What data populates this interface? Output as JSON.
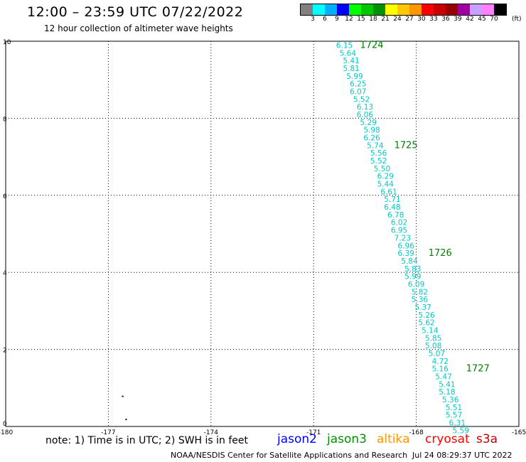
{
  "header": {
    "title": "12:00 – 23:59 UTC 07/22/2022",
    "subtitle": "12 hour collection of altimeter wave heights"
  },
  "legend": {
    "colors": [
      "#808080",
      "#00ffff",
      "#00b0ff",
      "#0000ff",
      "#00ff00",
      "#00c800",
      "#009000",
      "#ffff00",
      "#ffc800",
      "#ff9600",
      "#ff0000",
      "#c80000",
      "#960000",
      "#a000a0",
      "#c8a0ff",
      "#ff80ff",
      "#000000"
    ],
    "labels": [
      "3",
      "6",
      "9",
      "12",
      "15",
      "18",
      "21",
      "24",
      "27",
      "30",
      "33",
      "36",
      "39",
      "42",
      "45",
      "70"
    ],
    "unit": "(ft)"
  },
  "chart_data": {
    "type": "scatter",
    "title": "12:00 – 23:59 UTC 07/22/2022",
    "subtitle": "12 hour collection of altimeter wave heights",
    "xlim": [
      -180,
      -165
    ],
    "ylim": [
      0,
      10
    ],
    "grid": true,
    "x_ticks": [
      "-180",
      "-177",
      "-174",
      "-171",
      "-168",
      "-165"
    ],
    "y_ticks": [
      "0",
      "2",
      "4",
      "6",
      "8",
      "10"
    ],
    "swh_color": "#00c8c8",
    "time_color": "#008000",
    "points": [
      {
        "lon": -170.1,
        "lat": 9.9,
        "swh": "6.15"
      },
      {
        "lon": -170.0,
        "lat": 9.7,
        "swh": "5.64"
      },
      {
        "lon": -169.9,
        "lat": 9.5,
        "swh": "5.41"
      },
      {
        "lon": -169.9,
        "lat": 9.3,
        "swh": "5.81"
      },
      {
        "lon": -169.8,
        "lat": 9.1,
        "swh": "5.99"
      },
      {
        "lon": -169.7,
        "lat": 8.9,
        "swh": "6.25"
      },
      {
        "lon": -169.7,
        "lat": 8.7,
        "swh": "6.07"
      },
      {
        "lon": -169.6,
        "lat": 8.5,
        "swh": "5.52"
      },
      {
        "lon": -169.5,
        "lat": 8.3,
        "swh": "6.13"
      },
      {
        "lon": -169.5,
        "lat": 8.1,
        "swh": "6.06"
      },
      {
        "lon": -169.4,
        "lat": 7.9,
        "swh": "5.29"
      },
      {
        "lon": -169.3,
        "lat": 7.7,
        "swh": "5.98"
      },
      {
        "lon": -169.3,
        "lat": 7.5,
        "swh": "6.26"
      },
      {
        "lon": -169.2,
        "lat": 7.3,
        "swh": "5.74"
      },
      {
        "lon": -169.1,
        "lat": 7.1,
        "swh": "5.56"
      },
      {
        "lon": -169.1,
        "lat": 6.9,
        "swh": "5.52"
      },
      {
        "lon": -169.0,
        "lat": 6.7,
        "swh": "5.50"
      },
      {
        "lon": -168.9,
        "lat": 6.5,
        "swh": "6.29"
      },
      {
        "lon": -168.9,
        "lat": 6.3,
        "swh": "5.44"
      },
      {
        "lon": -168.8,
        "lat": 6.1,
        "swh": "6.61"
      },
      {
        "lon": -168.7,
        "lat": 5.9,
        "swh": "5.71"
      },
      {
        "lon": -168.7,
        "lat": 5.7,
        "swh": "6.48"
      },
      {
        "lon": -168.6,
        "lat": 5.5,
        "swh": "6.78"
      },
      {
        "lon": -168.5,
        "lat": 5.3,
        "swh": "6.02"
      },
      {
        "lon": -168.5,
        "lat": 5.1,
        "swh": "6.95"
      },
      {
        "lon": -168.4,
        "lat": 4.9,
        "swh": "7.23"
      },
      {
        "lon": -168.3,
        "lat": 4.7,
        "swh": "6.96"
      },
      {
        "lon": -168.3,
        "lat": 4.5,
        "swh": "6.39"
      },
      {
        "lon": -168.2,
        "lat": 4.3,
        "swh": "5.84"
      },
      {
        "lon": -168.1,
        "lat": 4.1,
        "swh": "5.83"
      },
      {
        "lon": -168.1,
        "lat": 3.9,
        "swh": "5.99"
      },
      {
        "lon": -168.0,
        "lat": 3.7,
        "swh": "6.09"
      },
      {
        "lon": -167.9,
        "lat": 3.5,
        "swh": "5.82"
      },
      {
        "lon": -167.9,
        "lat": 3.3,
        "swh": "5.36"
      },
      {
        "lon": -167.8,
        "lat": 3.1,
        "swh": "5.37"
      },
      {
        "lon": -167.7,
        "lat": 2.9,
        "swh": "5.26"
      },
      {
        "lon": -167.7,
        "lat": 2.7,
        "swh": "5.62"
      },
      {
        "lon": -167.6,
        "lat": 2.5,
        "swh": "5.14"
      },
      {
        "lon": -167.5,
        "lat": 2.3,
        "swh": "5.85"
      },
      {
        "lon": -167.5,
        "lat": 2.1,
        "swh": "5.08"
      },
      {
        "lon": -167.4,
        "lat": 1.9,
        "swh": "5.07"
      },
      {
        "lon": -167.3,
        "lat": 1.7,
        "swh": "4.72"
      },
      {
        "lon": -167.3,
        "lat": 1.5,
        "swh": "5.16"
      },
      {
        "lon": -167.2,
        "lat": 1.3,
        "swh": "5.47"
      },
      {
        "lon": -167.1,
        "lat": 1.1,
        "swh": "5.41"
      },
      {
        "lon": -167.1,
        "lat": 0.9,
        "swh": "5.18"
      },
      {
        "lon": -167.0,
        "lat": 0.7,
        "swh": "5.36"
      },
      {
        "lon": -166.9,
        "lat": 0.5,
        "swh": "5.51"
      },
      {
        "lon": -166.9,
        "lat": 0.3,
        "swh": "5.57"
      },
      {
        "lon": -166.8,
        "lat": 0.1,
        "swh": "6.31"
      },
      {
        "lon": -166.7,
        "lat": -0.1,
        "swh": "5.59"
      }
    ],
    "time_labels": [
      {
        "lon": -169.3,
        "lat": 9.9,
        "text": "1724"
      },
      {
        "lon": -168.3,
        "lat": 7.3,
        "text": "1725"
      },
      {
        "lon": -167.3,
        "lat": 4.5,
        "text": "1726"
      },
      {
        "lon": -166.2,
        "lat": 1.5,
        "text": "1727"
      }
    ],
    "stray_dots": [
      {
        "lon": -176.6,
        "lat": 0.8
      },
      {
        "lon": -176.5,
        "lat": 0.2
      }
    ]
  },
  "footer": {
    "note": "note:  1) Time is in UTC;  2) SWH is in feet",
    "satellites": [
      {
        "name": "jason2",
        "color": "#0000ff"
      },
      {
        "name": "jason3",
        "color": "#009000"
      },
      {
        "name": "altika",
        "color": "#ff9600"
      },
      {
        "name": "cryosat",
        "color": "#ff0000"
      },
      {
        "name": "s3a",
        "color": "#c80000"
      }
    ],
    "credit": "NOAA/NESDIS Center for Satellite Applications and Research",
    "timestamp": "Jul 24 08:29:37 UTC 2022"
  }
}
